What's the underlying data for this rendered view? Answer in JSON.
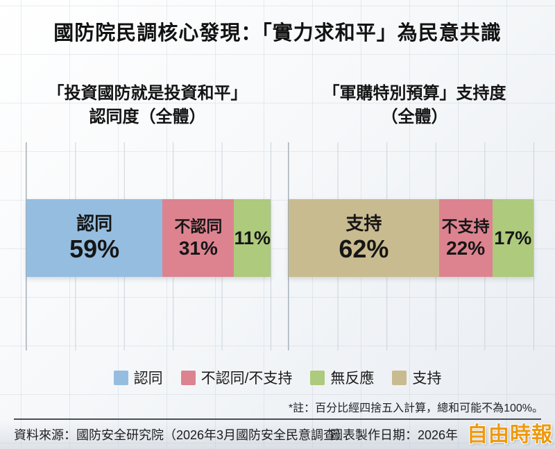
{
  "title": "國防院民調核心發現：「實力求和平」為民意共識",
  "colors": {
    "agree_blue": "#95bddf",
    "disagree_red": "#dd8390",
    "no_response_green": "#aeca7d",
    "support_tan": "#c9bb90"
  },
  "chart_data": [
    {
      "type": "bar",
      "subtype": "horizontal-stacked",
      "title_line1": "「投資國防就是投資和平」",
      "title_line2": "認同度（全體）",
      "xlim": [
        0,
        100
      ],
      "gridline_interval": 20,
      "grid": true,
      "segments": [
        {
          "label": "認同",
          "value": 59,
          "display": "59%",
          "color_key": "agree_blue"
        },
        {
          "label": "不認同",
          "value": 31,
          "display": "31%",
          "color_key": "disagree_red"
        },
        {
          "label": "",
          "value": 11,
          "display": "11%",
          "color_key": "no_response_green"
        }
      ]
    },
    {
      "type": "bar",
      "subtype": "horizontal-stacked",
      "title_line1": "「軍購特別預算」支持度",
      "title_line2": "（全體）",
      "xlim": [
        0,
        100
      ],
      "gridline_interval": 20,
      "grid": true,
      "segments": [
        {
          "label": "支持",
          "value": 62,
          "display": "62%",
          "color_key": "support_tan"
        },
        {
          "label": "不支持",
          "value": 22,
          "display": "22%",
          "color_key": "disagree_red"
        },
        {
          "label": "",
          "value": 17,
          "display": "17%",
          "color_key": "no_response_green"
        }
      ]
    }
  ],
  "legend": [
    {
      "label": "認同",
      "color": "#95bddf"
    },
    {
      "label": "不認同/不支持",
      "color": "#dd8390"
    },
    {
      "label": "無反應",
      "color": "#aeca7d"
    },
    {
      "label": "支持",
      "color": "#c9bb90"
    }
  ],
  "footnote": "*註：百分比經四捨五入計算，總和可能不為100%。",
  "footer": {
    "source": "資料來源：國防安全研究院（2026年3月國防安全民意調查）",
    "date": "圖表製作日期：2026年",
    "watermark": "自由時報"
  }
}
